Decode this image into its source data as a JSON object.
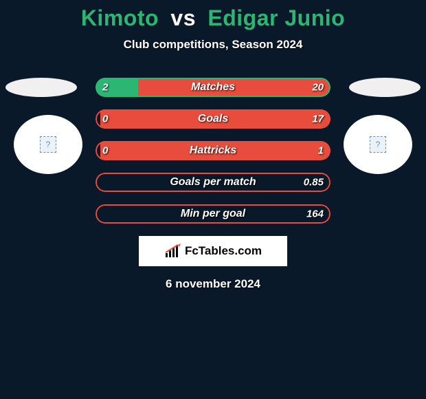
{
  "title": {
    "player1": "Kimoto",
    "vs": "vs",
    "player2": "Edigar Junio"
  },
  "subtitle": "Club competitions, Season 2024",
  "flags": {
    "left_bg": "#f0f0f0",
    "right_bg": "#f0f0f0"
  },
  "colors": {
    "left_fill": "#2bb673",
    "right_fill": "#e74c3c",
    "empty": "#0a1929",
    "border_green": "#2bb673",
    "border_red": "#e74c3c"
  },
  "stats": [
    {
      "label": "Matches",
      "left_val": "2",
      "right_val": "20",
      "left_pct": 18,
      "right_pct": 82,
      "border": "green"
    },
    {
      "label": "Goals",
      "left_val": "0",
      "right_val": "17",
      "left_pct": 0,
      "right_pct": 98,
      "border": "red"
    },
    {
      "label": "Hattricks",
      "left_val": "0",
      "right_val": "1",
      "left_pct": 0,
      "right_pct": 98,
      "border": "red"
    },
    {
      "label": "Goals per match",
      "left_val": "",
      "right_val": "0.85",
      "left_pct": 0,
      "right_pct": 0,
      "border": "red"
    },
    {
      "label": "Min per goal",
      "left_val": "",
      "right_val": "164",
      "left_pct": 0,
      "right_pct": 0,
      "border": "red"
    }
  ],
  "brand": "FcTables.com",
  "date": "6 november 2024"
}
